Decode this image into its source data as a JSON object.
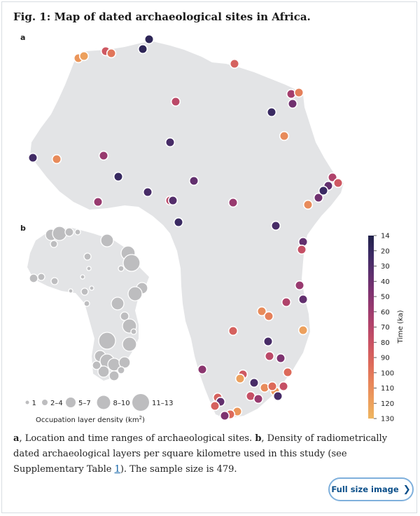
{
  "figure": {
    "title": "Fig. 1: Map of dated archaeological sites in Africa.",
    "panel_a_label": "a",
    "panel_b_label": "b"
  },
  "colorbar": {
    "label": "Time (ka)",
    "ticks": [
      "14",
      "20",
      "30",
      "40",
      "50",
      "60",
      "70",
      "80",
      "90",
      "100",
      "110",
      "120",
      "130"
    ],
    "colors": [
      "#20214a",
      "#3b2a63",
      "#5a2f6d",
      "#7b3270",
      "#993a6f",
      "#b5456a",
      "#cc5563",
      "#dd6a5a",
      "#e7845a",
      "#ec9d5c",
      "#eeb560"
    ]
  },
  "legend_b": {
    "sizes": [
      "1",
      "2–4",
      "5–7",
      "8–10",
      "11–13"
    ],
    "title": "Occupation layer density (km",
    "title_sup": "2",
    "title_end": ")"
  },
  "sites": [
    {
      "age": 20
    },
    {
      "age": 115
    },
    {
      "age": 120
    },
    {
      "age": 85
    },
    {
      "age": 100
    },
    {
      "age": 20
    },
    {
      "age": 90
    },
    {
      "age": 65
    },
    {
      "age": 45
    },
    {
      "age": 105
    },
    {
      "age": 25
    },
    {
      "age": 110
    },
    {
      "age": 75
    },
    {
      "age": 30
    },
    {
      "age": 60
    },
    {
      "age": 110
    },
    {
      "age": 28
    },
    {
      "age": 24
    },
    {
      "age": 40
    },
    {
      "age": 30
    },
    {
      "age": 75
    },
    {
      "age": 35
    },
    {
      "age": 60
    },
    {
      "age": 60
    },
    {
      "age": 70
    },
    {
      "age": 40
    },
    {
      "age": 45
    },
    {
      "age": 110
    },
    {
      "age": 25
    },
    {
      "age": 85
    },
    {
      "age": 30
    },
    {
      "age": 25
    },
    {
      "age": 40
    },
    {
      "age": 80
    },
    {
      "age": 60
    },
    {
      "age": 40
    },
    {
      "age": 110
    },
    {
      "age": 70
    },
    {
      "age": 105
    },
    {
      "age": 90
    },
    {
      "age": 30
    },
    {
      "age": 120
    },
    {
      "age": 75
    },
    {
      "age": 50
    },
    {
      "age": 95
    },
    {
      "age": 85
    },
    {
      "age": 30
    },
    {
      "age": 120
    },
    {
      "age": 55
    },
    {
      "age": 110
    },
    {
      "age": 115
    },
    {
      "age": 95
    },
    {
      "age": 80
    },
    {
      "age": 30
    },
    {
      "age": 80
    },
    {
      "age": 60
    },
    {
      "age": 90
    },
    {
      "age": 40
    },
    {
      "age": 90
    },
    {
      "age": 115
    },
    {
      "age": 95
    },
    {
      "age": 50
    }
  ],
  "caption": {
    "a_label": "a",
    "a_text": ", Location and time ranges of archaeological sites. ",
    "b_label": "b",
    "b_text": ", Density of radiometrically dated archaeological layers per square kilometre used in this study (see Supplementary Table ",
    "b_link": "1",
    "b_end": "). The sample size is 479."
  },
  "button": {
    "label": "Full size image",
    "icon": "chevron-right-icon"
  }
}
